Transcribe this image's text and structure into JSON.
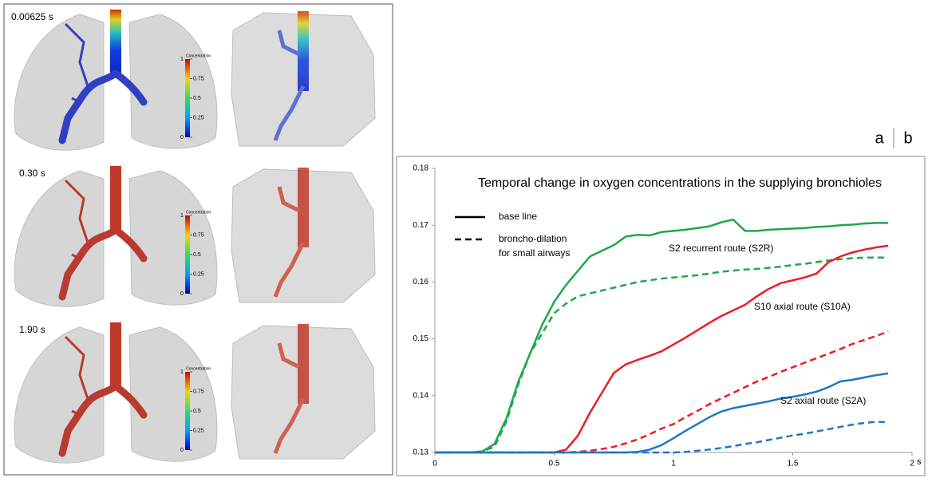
{
  "panels": [
    {
      "time": "0.00625 s"
    },
    {
      "time": "0.30 s"
    },
    {
      "time": "1.90 s"
    }
  ],
  "colorbar": {
    "title": "Concentration",
    "clim": [
      0,
      1
    ],
    "ticks": [
      1,
      0.75,
      0.5,
      0.25,
      0
    ]
  },
  "panel_labels": [
    "a",
    "b"
  ],
  "chart_data": {
    "type": "line",
    "title": "Temporal change in oxygen concentrations in the supplying bronchioles",
    "xlabel": "s",
    "legend": [
      {
        "style": "solid",
        "lines": [
          "base line"
        ]
      },
      {
        "style": "dashed",
        "lines": [
          "broncho-dilation",
          "for small airways"
        ]
      }
    ],
    "xlim": [
      0,
      2
    ],
    "xticks": [
      0,
      0.5,
      1,
      1.5,
      2
    ],
    "ylim": [
      0.13,
      0.18
    ],
    "yticks": [
      0.13,
      0.14,
      0.15,
      0.16,
      0.17,
      0.18
    ],
    "x": [
      0,
      0.05,
      0.1,
      0.15,
      0.2,
      0.25,
      0.3,
      0.35,
      0.4,
      0.45,
      0.5,
      0.55,
      0.6,
      0.65,
      0.7,
      0.75,
      0.8,
      0.85,
      0.9,
      0.95,
      1,
      1.05,
      1.1,
      1.15,
      1.2,
      1.25,
      1.3,
      1.35,
      1.4,
      1.45,
      1.5,
      1.55,
      1.6,
      1.65,
      1.7,
      1.75,
      1.8,
      1.85,
      1.9
    ],
    "series": [
      {
        "name": "S2 recurrent route (S2R)",
        "color": "#1fa84a",
        "values": [
          0.13,
          0.13,
          0.13,
          0.13,
          0.1302,
          0.1315,
          0.136,
          0.1425,
          0.1475,
          0.1525,
          0.1565,
          0.1595,
          0.162,
          0.1645,
          0.1655,
          0.1665,
          0.168,
          0.1683,
          0.1682,
          0.1688,
          0.169,
          0.1692,
          0.1695,
          0.1698,
          0.1705,
          0.171,
          0.169,
          0.169,
          0.1692,
          0.1693,
          0.1694,
          0.1695,
          0.1697,
          0.1698,
          0.17,
          0.1701,
          0.1703,
          0.1704,
          0.1704
        ],
        "dilated_values": [
          0.13,
          0.13,
          0.13,
          0.13,
          0.1302,
          0.131,
          0.1355,
          0.142,
          0.1475,
          0.151,
          0.1545,
          0.1562,
          0.1575,
          0.158,
          0.1585,
          0.159,
          0.1595,
          0.16,
          0.1603,
          0.1606,
          0.1608,
          0.161,
          0.1612,
          0.1615,
          0.1618,
          0.162,
          0.1622,
          0.1623,
          0.1625,
          0.1627,
          0.163,
          0.1632,
          0.1635,
          0.1638,
          0.164,
          0.1642,
          0.1643,
          0.1643,
          0.1643
        ]
      },
      {
        "name": "S10 axial route (S10A)",
        "color": "#ee1c24",
        "values": [
          0.13,
          0.13,
          0.13,
          0.13,
          0.13,
          0.13,
          0.13,
          0.13,
          0.13,
          0.13,
          0.13,
          0.1305,
          0.133,
          0.137,
          0.1405,
          0.144,
          0.1455,
          0.1463,
          0.147,
          0.1478,
          0.149,
          0.1502,
          0.1515,
          0.1528,
          0.154,
          0.155,
          0.156,
          0.1575,
          0.1588,
          0.1598,
          0.1603,
          0.1608,
          0.1615,
          0.1635,
          0.1645,
          0.1652,
          0.1657,
          0.1661,
          0.1664
        ],
        "dilated_values": [
          0.13,
          0.13,
          0.13,
          0.13,
          0.13,
          0.13,
          0.13,
          0.13,
          0.13,
          0.13,
          0.13,
          0.13,
          0.1301,
          0.1303,
          0.1306,
          0.131,
          0.1316,
          0.1323,
          0.1332,
          0.1342,
          0.135,
          0.1362,
          0.1373,
          0.1385,
          0.1395,
          0.1405,
          0.1415,
          0.1425,
          0.1433,
          0.1442,
          0.145,
          0.1458,
          0.1466,
          0.1474,
          0.1482,
          0.1491,
          0.1498,
          0.1505,
          0.1513
        ]
      },
      {
        "name": "S2 axial route (S2A)",
        "color": "#1f78c1",
        "values": [
          0.13,
          0.13,
          0.13,
          0.13,
          0.13,
          0.13,
          0.13,
          0.13,
          0.13,
          0.13,
          0.13,
          0.13,
          0.13,
          0.13,
          0.13,
          0.13,
          0.13,
          0.1301,
          0.1305,
          0.1313,
          0.1325,
          0.1338,
          0.135,
          0.1362,
          0.1372,
          0.1378,
          0.1382,
          0.1386,
          0.139,
          0.1395,
          0.1398,
          0.1402,
          0.1407,
          0.1415,
          0.1425,
          0.1428,
          0.1432,
          0.1436,
          0.1439
        ],
        "dilated_values": [
          0.13,
          0.13,
          0.13,
          0.13,
          0.13,
          0.13,
          0.13,
          0.13,
          0.13,
          0.13,
          0.13,
          0.13,
          0.13,
          0.13,
          0.13,
          0.13,
          0.13,
          0.13,
          0.13,
          0.13,
          0.13,
          0.1301,
          0.1303,
          0.1305,
          0.1308,
          0.1311,
          0.1315,
          0.1318,
          0.1322,
          0.1326,
          0.133,
          0.1333,
          0.1337,
          0.1341,
          0.1345,
          0.1349,
          0.1352,
          0.1354,
          0.1353
        ]
      }
    ]
  }
}
